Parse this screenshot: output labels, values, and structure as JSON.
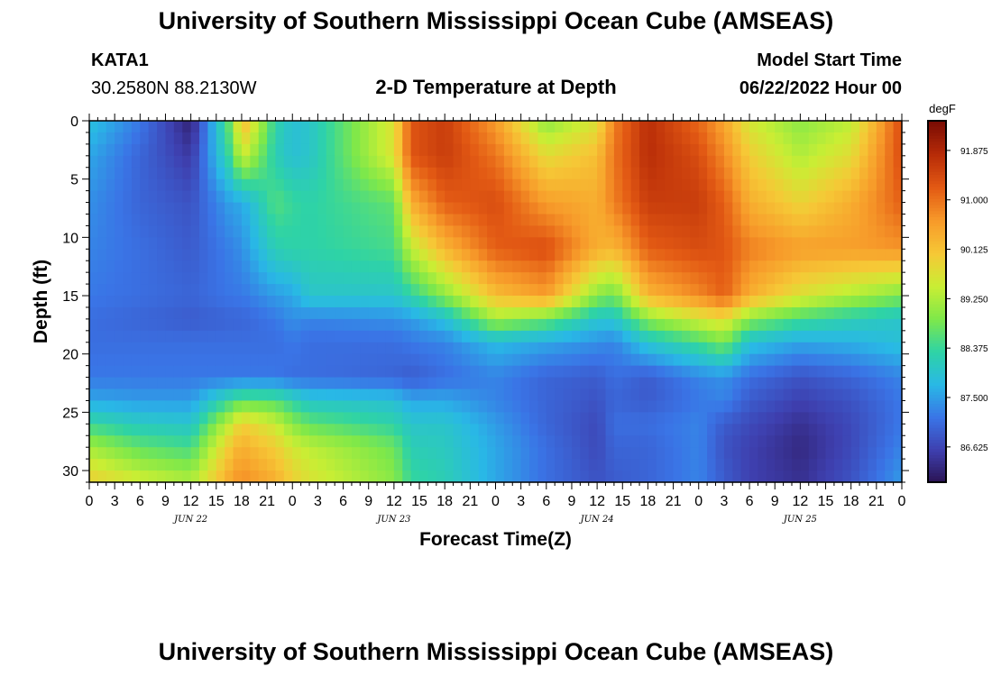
{
  "header": {
    "title": "University of Southern Mississippi Ocean Cube (AMSEAS)",
    "station_id": "KATA1",
    "station_coords": "30.2580N  88.2130W",
    "plot_title": "2-D Temperature at Depth",
    "model_start_label": "Model Start Time",
    "model_start_value": "06/22/2022 Hour 00"
  },
  "footer": {
    "title_repeat": "University of Southern Mississippi Ocean Cube (AMSEAS)"
  },
  "chart_data": {
    "type": "heatmap",
    "title": "2-D Temperature at Depth",
    "xlabel": "Forecast Time(Z)",
    "ylabel": "Depth (ft)",
    "colorbar_unit": "degF",
    "x_hours_range": [
      0,
      96
    ],
    "y_range_ft": [
      0,
      31
    ],
    "y_ticks": [
      0,
      5,
      10,
      15,
      20,
      25,
      30
    ],
    "x_tick_labels": [
      "0",
      "3",
      "6",
      "9",
      "12",
      "15",
      "18",
      "21",
      "0",
      "3",
      "6",
      "9",
      "12",
      "15",
      "18",
      "21",
      "0",
      "3",
      "6",
      "9",
      "12",
      "15",
      "18",
      "21",
      "0",
      "3",
      "6",
      "9",
      "12",
      "15",
      "18",
      "21",
      "0"
    ],
    "date_labels": [
      {
        "label": "JUN 22",
        "hour": 12
      },
      {
        "label": "JUN 23",
        "hour": 36
      },
      {
        "label": "JUN 24",
        "hour": 60
      },
      {
        "label": "JUN 25",
        "hour": 84
      }
    ],
    "color_range": [
      86.0,
      92.4
    ],
    "colorbar_ticks": [
      "91.875",
      "91.000",
      "90.125",
      "89.250",
      "88.375",
      "87.500",
      "86.625"
    ],
    "colorbar_tick_values": [
      91.875,
      91.0,
      90.125,
      89.25,
      88.375,
      87.5,
      86.625
    ],
    "colorscale": [
      "#2a1250",
      "#3e3fae",
      "#3a74e6",
      "#29b8e6",
      "#2ed3a6",
      "#7ee84a",
      "#c9ee34",
      "#f6c836",
      "#f79a2a",
      "#e35a14",
      "#b82c08",
      "#7a0c04"
    ],
    "grid_times_h": [
      0,
      6,
      12,
      17,
      18,
      22,
      24,
      26,
      36,
      38,
      42,
      48,
      54,
      60,
      62,
      66,
      72,
      75,
      78,
      84,
      90,
      96
    ],
    "grid_depths_ft": [
      0,
      3,
      7,
      11,
      15,
      17,
      19,
      22,
      24,
      26,
      28,
      31
    ],
    "temperature_degF": [
      [
        87.9,
        87.2,
        86.2,
        89.0,
        90.4,
        88.3,
        87.9,
        88.0,
        89.7,
        91.3,
        91.6,
        90.6,
        89.0,
        89.7,
        90.9,
        91.8,
        91.1,
        90.5,
        89.6,
        89.0,
        89.4,
        91.4
      ],
      [
        87.6,
        87.0,
        86.5,
        88.6,
        89.6,
        88.2,
        87.9,
        88.0,
        89.7,
        91.3,
        91.6,
        91.0,
        89.8,
        90.2,
        91.0,
        91.8,
        91.4,
        90.8,
        90.0,
        89.3,
        89.8,
        91.4
      ],
      [
        87.4,
        87.0,
        86.8,
        87.6,
        87.6,
        88.6,
        88.4,
        88.3,
        88.7,
        90.4,
        91.2,
        91.4,
        90.6,
        90.4,
        90.9,
        91.6,
        91.6,
        91.2,
        90.4,
        89.9,
        90.4,
        91.2
      ],
      [
        87.3,
        87.1,
        86.9,
        87.3,
        87.4,
        88.2,
        88.3,
        88.3,
        88.5,
        89.4,
        90.3,
        91.2,
        91.4,
        90.4,
        90.3,
        91.2,
        91.4,
        91.3,
        90.9,
        90.6,
        90.6,
        90.7
      ],
      [
        87.2,
        87.1,
        87.0,
        87.2,
        87.2,
        87.5,
        87.6,
        88.0,
        88.0,
        88.3,
        89.0,
        90.2,
        90.6,
        89.0,
        88.8,
        90.3,
        90.8,
        91.2,
        90.4,
        89.7,
        89.3,
        88.9
      ],
      [
        87.1,
        87.0,
        86.9,
        87.0,
        87.0,
        87.2,
        87.4,
        87.3,
        87.4,
        87.5,
        87.9,
        89.2,
        88.8,
        88.0,
        88.0,
        89.0,
        89.6,
        89.8,
        89.0,
        88.5,
        88.2,
        88.0
      ],
      [
        87.1,
        87.1,
        87.1,
        87.1,
        87.1,
        87.1,
        87.2,
        87.1,
        87.1,
        87.2,
        87.3,
        87.8,
        87.6,
        87.4,
        87.3,
        88.0,
        88.5,
        88.9,
        87.9,
        87.6,
        87.7,
        87.9
      ],
      [
        87.2,
        87.2,
        87.2,
        87.2,
        87.2,
        87.2,
        87.1,
        87.1,
        87.0,
        86.9,
        87.1,
        87.3,
        87.0,
        86.9,
        87.1,
        86.9,
        87.3,
        87.4,
        87.1,
        86.8,
        87.0,
        87.3
      ],
      [
        87.6,
        87.5,
        87.5,
        88.5,
        88.7,
        88.6,
        88.3,
        88.0,
        87.9,
        87.6,
        87.6,
        87.3,
        87.0,
        86.8,
        87.0,
        86.9,
        87.2,
        87.3,
        86.9,
        86.6,
        86.8,
        87.2
      ],
      [
        88.4,
        88.1,
        88.0,
        89.6,
        90.0,
        89.5,
        89.0,
        88.7,
        88.3,
        88.0,
        88.0,
        87.5,
        87.0,
        86.7,
        87.1,
        87.1,
        87.3,
        86.9,
        86.7,
        86.4,
        86.7,
        87.2
      ],
      [
        89.2,
        88.7,
        88.5,
        90.2,
        90.4,
        90.0,
        89.6,
        89.4,
        88.8,
        88.2,
        88.1,
        87.6,
        87.1,
        86.7,
        87.0,
        87.0,
        87.3,
        86.8,
        86.6,
        86.3,
        86.7,
        87.3
      ],
      [
        90.0,
        89.6,
        89.3,
        90.6,
        90.8,
        90.4,
        90.0,
        89.7,
        89.0,
        88.4,
        88.2,
        87.6,
        87.1,
        86.8,
        86.9,
        87.0,
        87.3,
        86.9,
        86.6,
        86.4,
        86.8,
        87.5
      ]
    ]
  }
}
